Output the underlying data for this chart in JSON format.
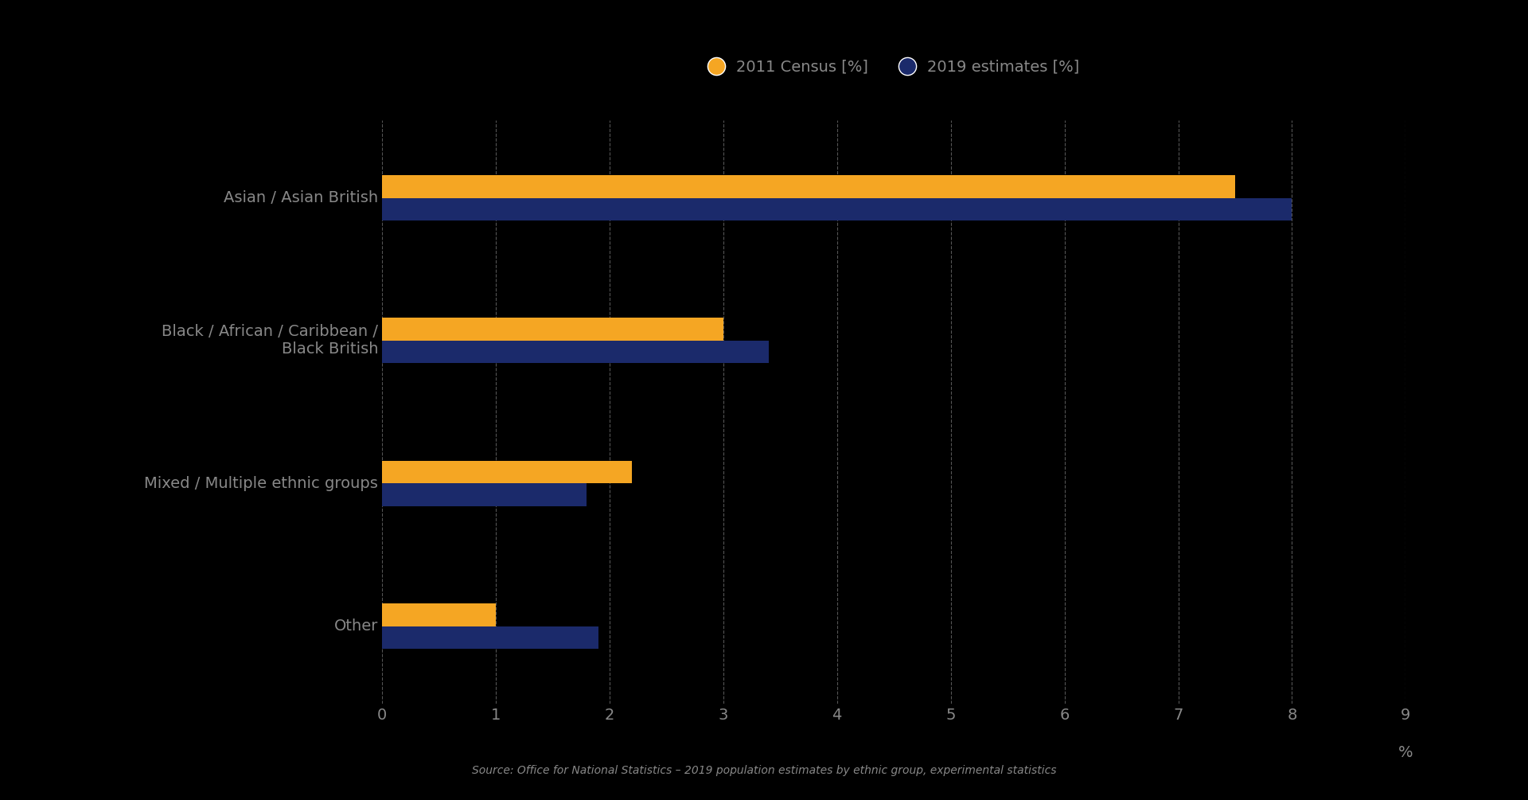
{
  "categories": [
    "Asian / Asian British",
    "Black / African / Caribbean /\nBlack British",
    "Mixed / Multiple ethnic groups",
    "Other"
  ],
  "census_2011": [
    7.5,
    3.0,
    2.2,
    1.0
  ],
  "estimates_2019": [
    8.0,
    3.4,
    1.8,
    1.9
  ],
  "census_color": "#F5A623",
  "estimates_color": "#1B2A6B",
  "background_color": "#000000",
  "text_color": "#888888",
  "legend_text_color": "#888888",
  "bar_height": 0.35,
  "xlim": [
    0,
    9
  ],
  "xticks": [
    0,
    1,
    2,
    3,
    4,
    5,
    6,
    7,
    8,
    9
  ],
  "xlabel": "%",
  "legend_census": "2011 Census [%]",
  "legend_estimates": "2019 estimates [%]",
  "source_text": "Source: Office for National Statistics – 2019 population estimates by ethnic group, experimental statistics",
  "grid_color": "#555555",
  "label_fontsize": 14,
  "tick_fontsize": 14,
  "legend_fontsize": 14,
  "source_fontsize": 10
}
